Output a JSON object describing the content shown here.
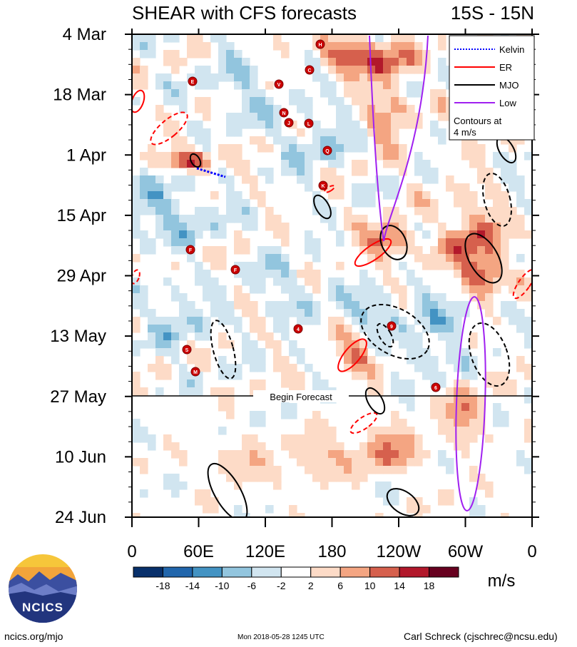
{
  "chart_data": {
    "type": "heatmap",
    "title": "SHEAR with CFS forecasts",
    "region": "15S - 15N",
    "x_tick_labels": [
      "0",
      "60E",
      "120E",
      "180",
      "120W",
      "60W",
      "0"
    ],
    "x_range": [
      0,
      360
    ],
    "y_tick_labels": [
      "4 Mar",
      "18 Mar",
      "1 Apr",
      "15 Apr",
      "29 Apr",
      "13 May",
      "27 May",
      "10 Jun",
      "24 Jun"
    ],
    "forecast_label": "Begin Forecast",
    "forecast_start": "27 May",
    "colorbar": {
      "unit": "m/s",
      "tick_labels": [
        "-18",
        "-14",
        "-10",
        "-6",
        "-2",
        "2",
        "6",
        "10",
        "14",
        "18"
      ],
      "colors": [
        "#08306b",
        "#2166ac",
        "#4393c3",
        "#92c5de",
        "#d1e5f0",
        "#ffffff",
        "#fddbc7",
        "#f4a582",
        "#d6604d",
        "#b2182b",
        "#67001f"
      ]
    },
    "legend": {
      "placement": "top-right",
      "entries": [
        {
          "name": "Kelvin",
          "color": "#0000ff",
          "dash": "dotted"
        },
        {
          "name": "ER",
          "color": "#ff0000",
          "dash": "solid"
        },
        {
          "name": "MJO",
          "color": "#000000",
          "dash": "solid"
        },
        {
          "name": "Low",
          "color": "#a020f0",
          "dash": "solid"
        }
      ],
      "contour_note": "Contours at\n4 m/s"
    },
    "storm_markers": [
      "H",
      "C",
      "E",
      "V",
      "N",
      "J",
      "L",
      "Q",
      "K",
      "F",
      "F",
      "4",
      "9",
      "S",
      "M",
      "6"
    ]
  },
  "footer": {
    "left": "ncics.org/mjo",
    "middle": "Mon 2018-05-28 1245 UTC",
    "right": "Carl Schreck (cjschrec@ncsu.edu)"
  },
  "logo": {
    "text": "NCICS"
  }
}
